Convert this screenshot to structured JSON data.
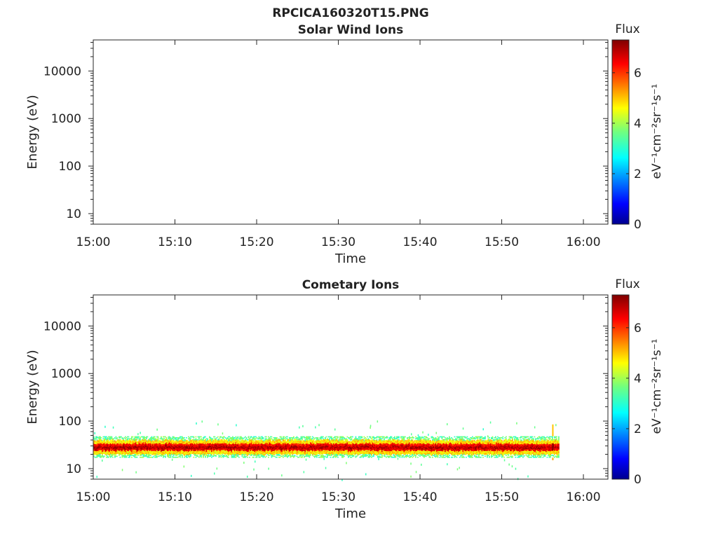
{
  "figure_title": "RPCICA160320T15.PNG",
  "chart_data": [
    {
      "type": "heatmap",
      "title": "Solar Wind Ions",
      "xlabel": "Time",
      "ylabel": "Energy (eV)",
      "yscale": "log",
      "xlim": [
        "15:00",
        "16:03"
      ],
      "ylim": [
        6,
        45000
      ],
      "x_ticks": [
        "15:00",
        "15:10",
        "15:20",
        "15:30",
        "15:40",
        "15:50",
        "16:00"
      ],
      "y_ticks": [
        "10",
        "100",
        "1000",
        "10000"
      ],
      "colorbar": {
        "title": "Flux",
        "label": "eV⁻¹cm⁻²sr⁻¹s⁻¹",
        "min": 0,
        "max": 7.3,
        "ticks": [
          "0",
          "2",
          "4",
          "6"
        ],
        "colormap": "jet"
      },
      "bands": []
    },
    {
      "type": "heatmap",
      "title": "Cometary Ions",
      "xlabel": "Time",
      "ylabel": "Energy (eV)",
      "yscale": "log",
      "xlim": [
        "15:00",
        "16:03"
      ],
      "ylim": [
        6,
        45000
      ],
      "x_ticks": [
        "15:00",
        "15:10",
        "15:20",
        "15:30",
        "15:40",
        "15:50",
        "16:00"
      ],
      "y_ticks": [
        "10",
        "100",
        "1000",
        "10000"
      ],
      "colorbar": {
        "title": "Flux",
        "label": "eV⁻¹cm⁻²sr⁻¹s⁻¹",
        "min": 0,
        "max": 7.3,
        "ticks": [
          "0",
          "2",
          "4",
          "6"
        ],
        "colormap": "jet"
      },
      "bands": [
        {
          "time_start": "15:00",
          "time_end": "15:57",
          "core_energy_range": [
            24,
            34
          ],
          "peak_energy": 28,
          "inner_energy_range": [
            20,
            40
          ],
          "outer_energy_range": [
            17,
            48
          ],
          "peak_flux": 7.0,
          "core_flux": 6.0,
          "edge_flux": 3.5,
          "spike_time": "15:56",
          "spike_energy_range": [
            15,
            85
          ]
        }
      ]
    }
  ]
}
